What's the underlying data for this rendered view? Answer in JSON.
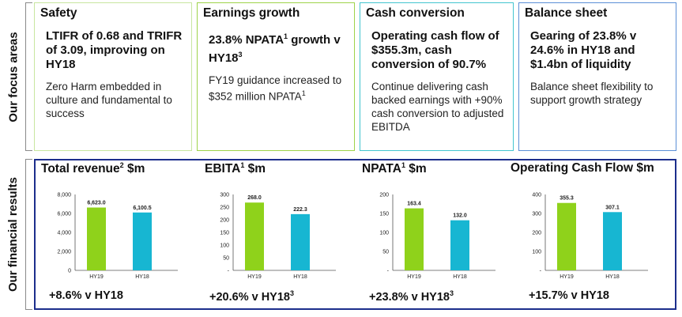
{
  "side_labels": {
    "focus": "Our focus areas",
    "results": "Our financial results"
  },
  "focus_areas": [
    {
      "heading": "Safety",
      "highlight_html": "LTIFR of 0.68 and TRIFR of 3.09, improving on HY18",
      "body_html": "Zero Harm embedded in culture and fundamental to success",
      "color": "#c8e6a0"
    },
    {
      "heading": "Earnings growth",
      "highlight_html": "23.8% NPATA<sup>1</sup> growth v HY18<sup>3</sup>",
      "body_html": "FY19 guidance increased to $352 million NPATA<sup>1</sup>",
      "color": "#9ed34a"
    },
    {
      "heading": "Cash conversion",
      "highlight_html": "Operating cash flow of $355.3m, cash conversion of 90.7%",
      "body_html": "Continue delivering cash backed earnings with +90% cash conversion to adjusted EBITDA",
      "color": "#43c5cf"
    },
    {
      "heading": "Balance sheet",
      "highlight_html": "Gearing of 23.8% v 24.6% in HY18 and $1.4bn of liquidity",
      "body_html": "Balance sheet flexibility to support growth strategy",
      "color": "#5b8fd6"
    }
  ],
  "charts_text": [
    {
      "title_html": "Total revenue<sup>2</sup> $m",
      "growth_html": "+8.6% v HY18"
    },
    {
      "title_html": "EBITA<sup>1</sup> $m",
      "growth_html": "+20.6% v HY18<sup>3</sup>"
    },
    {
      "title_html": "NPATA<sup>1</sup> $m",
      "growth_html": "+23.8% v HY18<sup>3</sup>"
    },
    {
      "title_html": "Operating Cash Flow $m",
      "growth_html": "+15.7% v HY18"
    }
  ],
  "colors": {
    "hy19": "#8fd21b",
    "hy18": "#17b6d2",
    "results_border": "#1c2e8c"
  },
  "chart_data": [
    {
      "type": "bar",
      "categories": [
        "HY19",
        "HY18"
      ],
      "values": [
        6623.0,
        6100.5
      ],
      "value_labels": [
        "6,623.0",
        "6,100.5"
      ],
      "ylim": [
        0,
        8000
      ],
      "yticks": [
        0,
        2000,
        4000,
        6000,
        8000
      ],
      "ytick_labels": [
        "0",
        "2,000",
        "4,000",
        "6,000",
        "8,000"
      ]
    },
    {
      "type": "bar",
      "categories": [
        "HY19",
        "HY18"
      ],
      "values": [
        268.0,
        222.3
      ],
      "value_labels": [
        "268.0",
        "222.3"
      ],
      "ylim": [
        0,
        300
      ],
      "yticks": [
        0,
        50,
        100,
        150,
        200,
        250,
        300
      ],
      "ytick_labels": [
        "-",
        "50",
        "100",
        "150",
        "200",
        "250",
        "300"
      ]
    },
    {
      "type": "bar",
      "categories": [
        "HY19",
        "HY18"
      ],
      "values": [
        163.4,
        132.0
      ],
      "value_labels": [
        "163.4",
        "132.0"
      ],
      "ylim": [
        0,
        200
      ],
      "yticks": [
        0,
        50,
        100,
        150,
        200
      ],
      "ytick_labels": [
        "-",
        "50",
        "100",
        "150",
        "200"
      ]
    },
    {
      "type": "bar",
      "categories": [
        "HY19",
        "HY18"
      ],
      "values": [
        355.3,
        307.1
      ],
      "value_labels": [
        "355.3",
        "307.1"
      ],
      "ylim": [
        0,
        400
      ],
      "yticks": [
        0,
        100,
        200,
        300,
        400
      ],
      "ytick_labels": [
        "-",
        "100",
        "200",
        "300",
        "400"
      ]
    }
  ]
}
